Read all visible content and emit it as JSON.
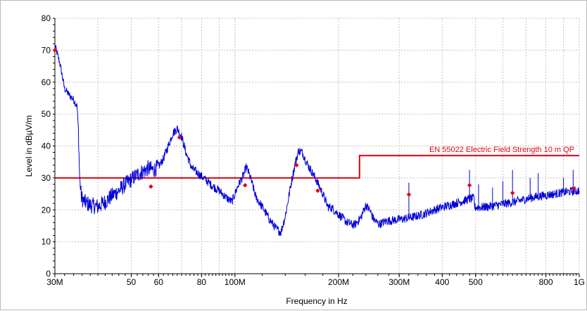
{
  "chart_data": {
    "type": "line",
    "title": "",
    "xlabel": "Frequency in Hz",
    "ylabel": "Level in dBµV/m",
    "x_scale": "log",
    "xlim": [
      30000000,
      1000000000
    ],
    "ylim": [
      0,
      80
    ],
    "grid": true,
    "x_ticks": [
      {
        "value": 30000000,
        "label": "30M"
      },
      {
        "value": 50000000,
        "label": "50"
      },
      {
        "value": 60000000,
        "label": "60"
      },
      {
        "value": 80000000,
        "label": "80"
      },
      {
        "value": 100000000,
        "label": "100M"
      },
      {
        "value": 200000000,
        "label": "200M"
      },
      {
        "value": 300000000,
        "label": "300M"
      },
      {
        "value": 400000000,
        "label": "400"
      },
      {
        "value": 500000000,
        "label": "500"
      },
      {
        "value": 800000000,
        "label": "800"
      },
      {
        "value": 1000000000,
        "label": "1G"
      }
    ],
    "y_ticks": [
      0,
      10,
      20,
      30,
      40,
      50,
      60,
      70,
      80
    ],
    "limit_line": {
      "label": "EN 55022 Electric Field Strength 10 m QP",
      "color": "#e8000b",
      "points": [
        [
          30000000,
          30
        ],
        [
          230000000,
          30
        ],
        [
          230000000,
          37
        ],
        [
          1000000000,
          37
        ]
      ]
    },
    "spectrum": {
      "color": "#0000d8",
      "points": [
        [
          30000000,
          71.5
        ],
        [
          31000000,
          66
        ],
        [
          32000000,
          58
        ],
        [
          33000000,
          56
        ],
        [
          34000000,
          54.5
        ],
        [
          34800000,
          52.5
        ],
        [
          35100000,
          45
        ],
        [
          35400000,
          30
        ],
        [
          35800000,
          24
        ],
        [
          36500000,
          22.5
        ],
        [
          38000000,
          21.5
        ],
        [
          40000000,
          21
        ],
        [
          42000000,
          22.5
        ],
        [
          44000000,
          24.5
        ],
        [
          46000000,
          26
        ],
        [
          48000000,
          28
        ],
        [
          50000000,
          29.5
        ],
        [
          52000000,
          31
        ],
        [
          54000000,
          32
        ],
        [
          56000000,
          33
        ],
        [
          58000000,
          32.5
        ],
        [
          60000000,
          33.5
        ],
        [
          62000000,
          36
        ],
        [
          64000000,
          40
        ],
        [
          66000000,
          44
        ],
        [
          68000000,
          45.5
        ],
        [
          70000000,
          43
        ],
        [
          72000000,
          38
        ],
        [
          75000000,
          33
        ],
        [
          78000000,
          31.5
        ],
        [
          82000000,
          29.5
        ],
        [
          86000000,
          27.5
        ],
        [
          90000000,
          26
        ],
        [
          94000000,
          24
        ],
        [
          98000000,
          22.5
        ],
        [
          102000000,
          27.5
        ],
        [
          106000000,
          31
        ],
        [
          108000000,
          33.5
        ],
        [
          111000000,
          30
        ],
        [
          115000000,
          24
        ],
        [
          120000000,
          21
        ],
        [
          126000000,
          17
        ],
        [
          132000000,
          14
        ],
        [
          136000000,
          13
        ],
        [
          140000000,
          18
        ],
        [
          146000000,
          29
        ],
        [
          150000000,
          35
        ],
        [
          153000000,
          38.5
        ],
        [
          157000000,
          38
        ],
        [
          162000000,
          34.5
        ],
        [
          167000000,
          32
        ],
        [
          172000000,
          29.5
        ],
        [
          180000000,
          25
        ],
        [
          186000000,
          21
        ],
        [
          192000000,
          20.5
        ],
        [
          198000000,
          19
        ],
        [
          205000000,
          17.5
        ],
        [
          212000000,
          16
        ],
        [
          222000000,
          15.2
        ],
        [
          232000000,
          17.5
        ],
        [
          240000000,
          21.5
        ],
        [
          246000000,
          20
        ],
        [
          253000000,
          17
        ],
        [
          262000000,
          15.5
        ],
        [
          275000000,
          16.5
        ],
        [
          290000000,
          16.8
        ],
        [
          310000000,
          17.2
        ],
        [
          330000000,
          17.8
        ],
        [
          350000000,
          18.5
        ],
        [
          375000000,
          19.8
        ],
        [
          400000000,
          20.8
        ],
        [
          430000000,
          21.8
        ],
        [
          460000000,
          22.8
        ],
        [
          480000000,
          23.4
        ],
        [
          495000000,
          23.6
        ],
        [
          497000000,
          20.8
        ],
        [
          520000000,
          20.8
        ],
        [
          560000000,
          21.2
        ],
        [
          600000000,
          21.8
        ],
        [
          650000000,
          22.5
        ],
        [
          700000000,
          23.4
        ],
        [
          750000000,
          24.1
        ],
        [
          800000000,
          24.6
        ],
        [
          850000000,
          25
        ],
        [
          900000000,
          25.5
        ],
        [
          950000000,
          25.8
        ],
        [
          1000000000,
          26
        ]
      ],
      "spikes": [
        [
          320000000,
          28.5
        ],
        [
          480000000,
          32.5
        ],
        [
          510000000,
          28
        ],
        [
          560000000,
          27
        ],
        [
          600000000,
          29
        ],
        [
          640000000,
          32.5
        ],
        [
          720000000,
          30
        ],
        [
          760000000,
          31.5
        ],
        [
          900000000,
          30
        ],
        [
          960000000,
          32.5
        ]
      ]
    },
    "qp_markers": {
      "color": "#e8000b",
      "points": [
        [
          30000000,
          70
        ],
        [
          57000000,
          27.3
        ],
        [
          69000000,
          42.7
        ],
        [
          107000000,
          27.7
        ],
        [
          151000000,
          34
        ],
        [
          174000000,
          26
        ],
        [
          320000000,
          24.8
        ],
        [
          480000000,
          27.7
        ],
        [
          640000000,
          25.3
        ],
        [
          960000000,
          26.7
        ]
      ]
    }
  }
}
